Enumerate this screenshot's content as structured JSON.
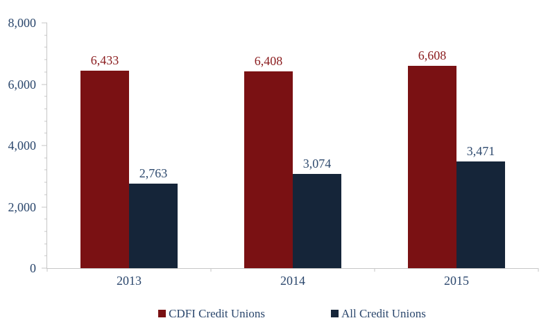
{
  "chart_data": {
    "type": "bar",
    "title": "",
    "xlabel": "",
    "ylabel": "",
    "categories": [
      "2013",
      "2014",
      "2015"
    ],
    "series": [
      {
        "name": "CDFI Credit Unions",
        "color": "#7A1113",
        "label_color": "#8A1B1D",
        "values": [
          6433,
          6408,
          6608
        ],
        "value_labels": [
          "6,433",
          "6,408",
          "6,608"
        ]
      },
      {
        "name": "All Credit Unions",
        "color": "#152539",
        "label_color": "#2E4A6E",
        "values": [
          2763,
          3074,
          3471
        ],
        "value_labels": [
          "2,763",
          "3,074",
          "3,471"
        ]
      }
    ],
    "ylim": [
      0,
      8000
    ],
    "y_major_ticks": [
      0,
      2000,
      4000,
      6000,
      8000
    ],
    "y_major_tick_labels": [
      "0",
      "2,000",
      "4,000",
      "6,000",
      "8,000"
    ],
    "y_minor_tick_step": 400,
    "grid": false,
    "legend_position": "bottom-center",
    "colors": {
      "axis": "#C6C6C6",
      "navy_text": "#2A466C",
      "background": "#FFFFFF"
    }
  }
}
